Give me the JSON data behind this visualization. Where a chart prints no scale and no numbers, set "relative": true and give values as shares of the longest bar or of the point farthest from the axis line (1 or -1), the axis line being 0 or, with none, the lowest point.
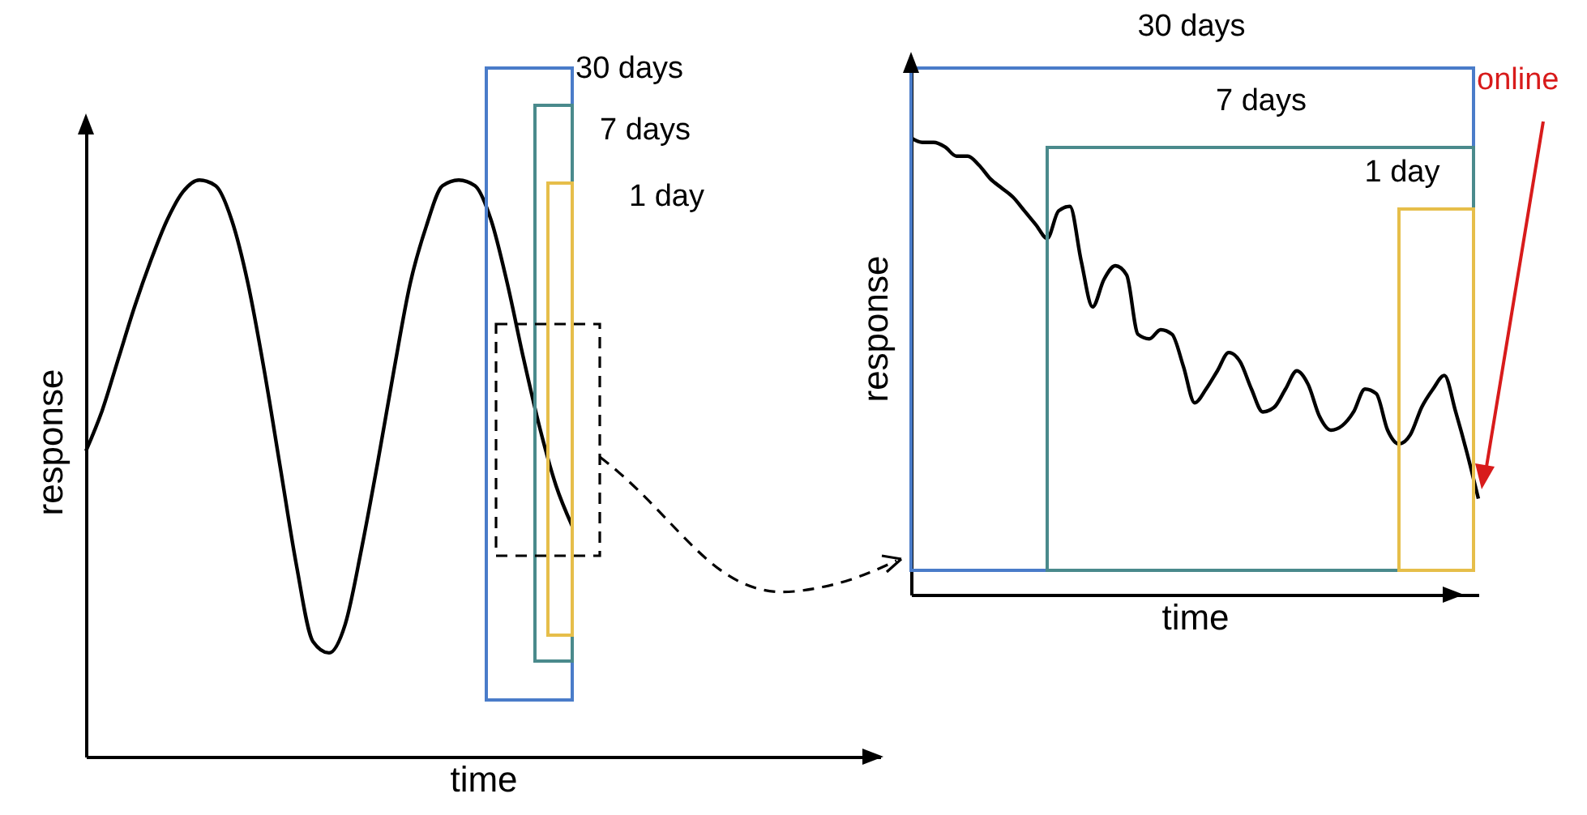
{
  "chart_data": [
    {
      "type": "line",
      "relative": true,
      "xlabel": "time",
      "ylabel": "response",
      "categories": [
        null,
        null,
        null,
        null,
        null,
        null,
        null,
        null,
        null,
        null,
        null,
        null,
        null,
        null,
        null,
        null,
        null,
        null,
        null,
        null,
        null,
        null,
        null,
        null,
        null,
        null,
        null,
        null,
        null,
        null,
        null,
        null,
        null,
        null,
        null,
        null,
        null,
        null,
        null,
        null,
        null,
        null,
        null,
        null,
        null,
        null,
        null,
        null,
        null,
        null
      ],
      "series": [
        {
          "color": "#000000",
          "values": [
            0.53,
            0.6,
            0.69,
            0.78,
            0.86,
            0.93,
            0.98,
            1.0,
            0.99,
            0.93,
            0.82,
            0.67,
            0.5,
            0.33,
            0.2,
            0.18,
            0.23,
            0.36,
            0.51,
            0.67,
            0.82,
            0.92,
            0.99,
            1.0,
            0.99,
            0.93,
            0.82,
            0.69,
            0.57,
            0.47,
            0.4,
            null,
            null,
            null,
            null,
            null,
            null,
            null,
            null,
            null,
            null,
            null,
            null,
            null,
            null,
            null,
            null,
            null,
            null,
            null
          ]
        }
      ],
      "annotations": [
        "30 days",
        "7 days",
        "1 day"
      ]
    },
    {
      "type": "line",
      "relative": true,
      "xlabel": "time",
      "ylabel": "response",
      "categories": [
        null,
        null,
        null,
        null,
        null,
        null,
        null,
        null,
        null,
        null,
        null,
        null,
        null,
        null,
        null,
        null,
        null,
        null,
        null,
        null,
        null,
        null,
        null,
        null,
        null,
        null,
        null,
        null,
        null,
        null,
        null,
        null,
        null,
        null,
        null,
        null,
        null,
        null,
        null,
        null,
        null,
        null,
        null,
        null,
        null,
        null,
        null,
        null,
        null,
        null,
        null
      ],
      "series": [
        {
          "color": "#000000",
          "values": [
            1.0,
            0.99,
            0.99,
            0.98,
            0.96,
            0.96,
            0.94,
            0.91,
            0.89,
            0.87,
            0.84,
            0.81,
            0.78,
            0.84,
            0.85,
            0.73,
            0.63,
            0.69,
            0.72,
            0.7,
            0.57,
            0.56,
            0.58,
            0.57,
            0.5,
            0.42,
            0.45,
            0.49,
            0.53,
            0.51,
            0.45,
            0.4,
            0.41,
            0.45,
            0.49,
            0.46,
            0.39,
            0.36,
            0.37,
            0.4,
            0.45,
            0.44,
            0.36,
            0.33,
            0.35,
            0.41,
            0.45,
            0.48,
            0.4,
            0.31,
            0.21
          ]
        }
      ],
      "annotations": [
        "30 days",
        "7 days",
        "1 day",
        "online"
      ]
    }
  ]
}
